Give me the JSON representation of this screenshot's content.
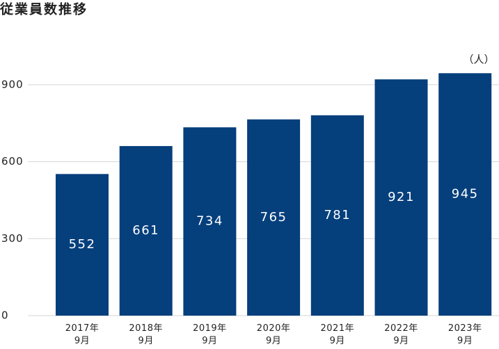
{
  "chart_data": {
    "type": "bar",
    "title": "従業員数推移",
    "unit_label": "（人）",
    "categories": [
      "2017年\n9月",
      "2018年\n9月",
      "2019年\n9月",
      "2020年\n9月",
      "2021年\n9月",
      "2022年\n9月",
      "2023年\n9月"
    ],
    "values": [
      552,
      661,
      734,
      765,
      781,
      921,
      945
    ],
    "color": "#053f7c",
    "ylim": [
      0,
      1000
    ],
    "yticks": [
      0,
      300,
      600,
      900
    ],
    "grid": true
  }
}
